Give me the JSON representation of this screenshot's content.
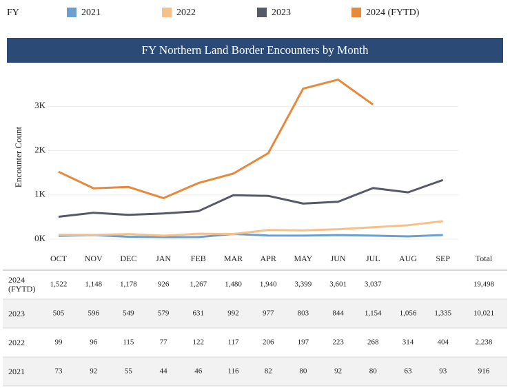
{
  "chart_data": {
    "type": "line",
    "title": "FY Northern Land Border Encounters by Month",
    "legend_title": "FY",
    "y_label": "Encounter Count",
    "total_header": "Total",
    "categories": [
      "OCT",
      "NOV",
      "DEC",
      "JAN",
      "FEB",
      "MAR",
      "APR",
      "MAY",
      "JUN",
      "JUL",
      "AUG",
      "SEP"
    ],
    "ylim": [
      0,
      3750
    ],
    "yticks": [
      {
        "value": 0,
        "label": "0K"
      },
      {
        "value": 1000,
        "label": "1K"
      },
      {
        "value": 2000,
        "label": "2K"
      },
      {
        "value": 3000,
        "label": "3K"
      }
    ],
    "grid": true,
    "series": [
      {
        "name": "2021",
        "color": "#6a9fcf",
        "values": [
          73,
          92,
          55,
          44,
          46,
          116,
          82,
          80,
          92,
          80,
          63,
          93
        ],
        "total": 916,
        "total_label": "916"
      },
      {
        "name": "2022",
        "color": "#f5c08a",
        "values": [
          99,
          96,
          115,
          77,
          122,
          117,
          206,
          197,
          223,
          268,
          314,
          404
        ],
        "total": 2238,
        "total_label": "2,238"
      },
      {
        "name": "2023",
        "color": "#555a66",
        "values": [
          505,
          596,
          549,
          579,
          631,
          992,
          977,
          803,
          844,
          1154,
          1056,
          1335
        ],
        "value_labels": [
          "505",
          "596",
          "549",
          "579",
          "631",
          "992",
          "977",
          "803",
          "844",
          "1,154",
          "1,056",
          "1,335"
        ],
        "total": 10021,
        "total_label": "10,021"
      },
      {
        "name": "2024 (FYTD)",
        "color": "#e8883a",
        "values": [
          1522,
          1148,
          1178,
          926,
          1267,
          1480,
          1940,
          3399,
          3601,
          3037,
          null,
          null
        ],
        "value_labels": [
          "1,522",
          "1,148",
          "1,178",
          "926",
          "1,267",
          "1,480",
          "1,940",
          "3,399",
          "3,601",
          "3,037",
          null,
          null
        ],
        "total": 19498,
        "total_label": "19,498"
      }
    ]
  }
}
